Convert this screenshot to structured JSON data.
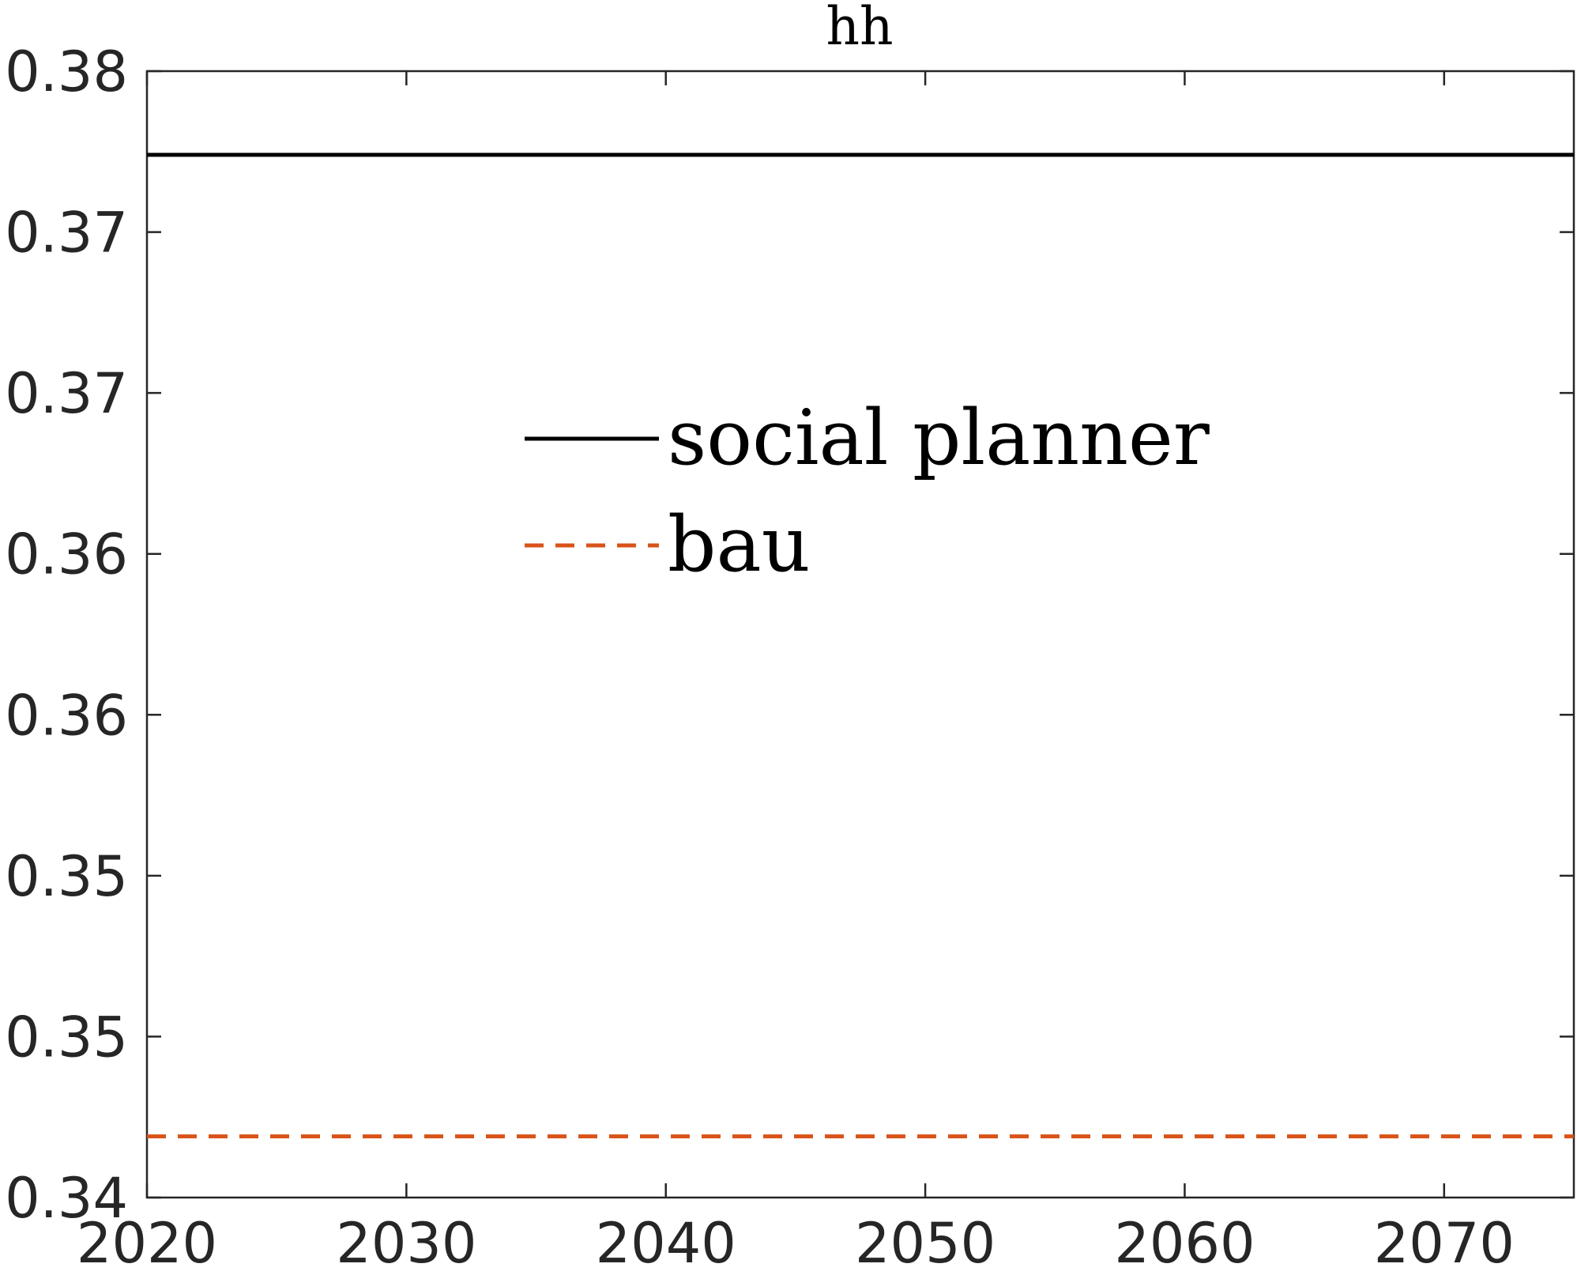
{
  "chart_data": {
    "type": "line",
    "title": "hh",
    "xlabel": "",
    "ylabel": "",
    "xlim": [
      2020,
      2075
    ],
    "ylim": [
      0.34,
      0.375
    ],
    "grid": false,
    "legend_position": "center",
    "x_ticks": [
      2020,
      2030,
      2040,
      2050,
      2060,
      2070
    ],
    "x_tick_labels": [
      "2020",
      "2030",
      "2040",
      "2050",
      "2060",
      "2070"
    ],
    "y_ticks": [
      0.34,
      0.345,
      0.35,
      0.355,
      0.36,
      0.365,
      0.37,
      0.375
    ],
    "y_tick_labels": [
      "0.34",
      "0.35",
      "0.35",
      "0.36",
      "0.36",
      "0.37",
      "0.37",
      "0.38"
    ],
    "series": [
      {
        "name": "social planner",
        "x": [
          2020,
          2075
        ],
        "y": [
          0.3724,
          0.3724
        ],
        "color": "#000000",
        "dash": "solid"
      },
      {
        "name": "bau",
        "x": [
          2020,
          2075
        ],
        "y": [
          0.3419,
          0.3419
        ],
        "color": "#D95319",
        "dash": "dashed"
      }
    ]
  }
}
